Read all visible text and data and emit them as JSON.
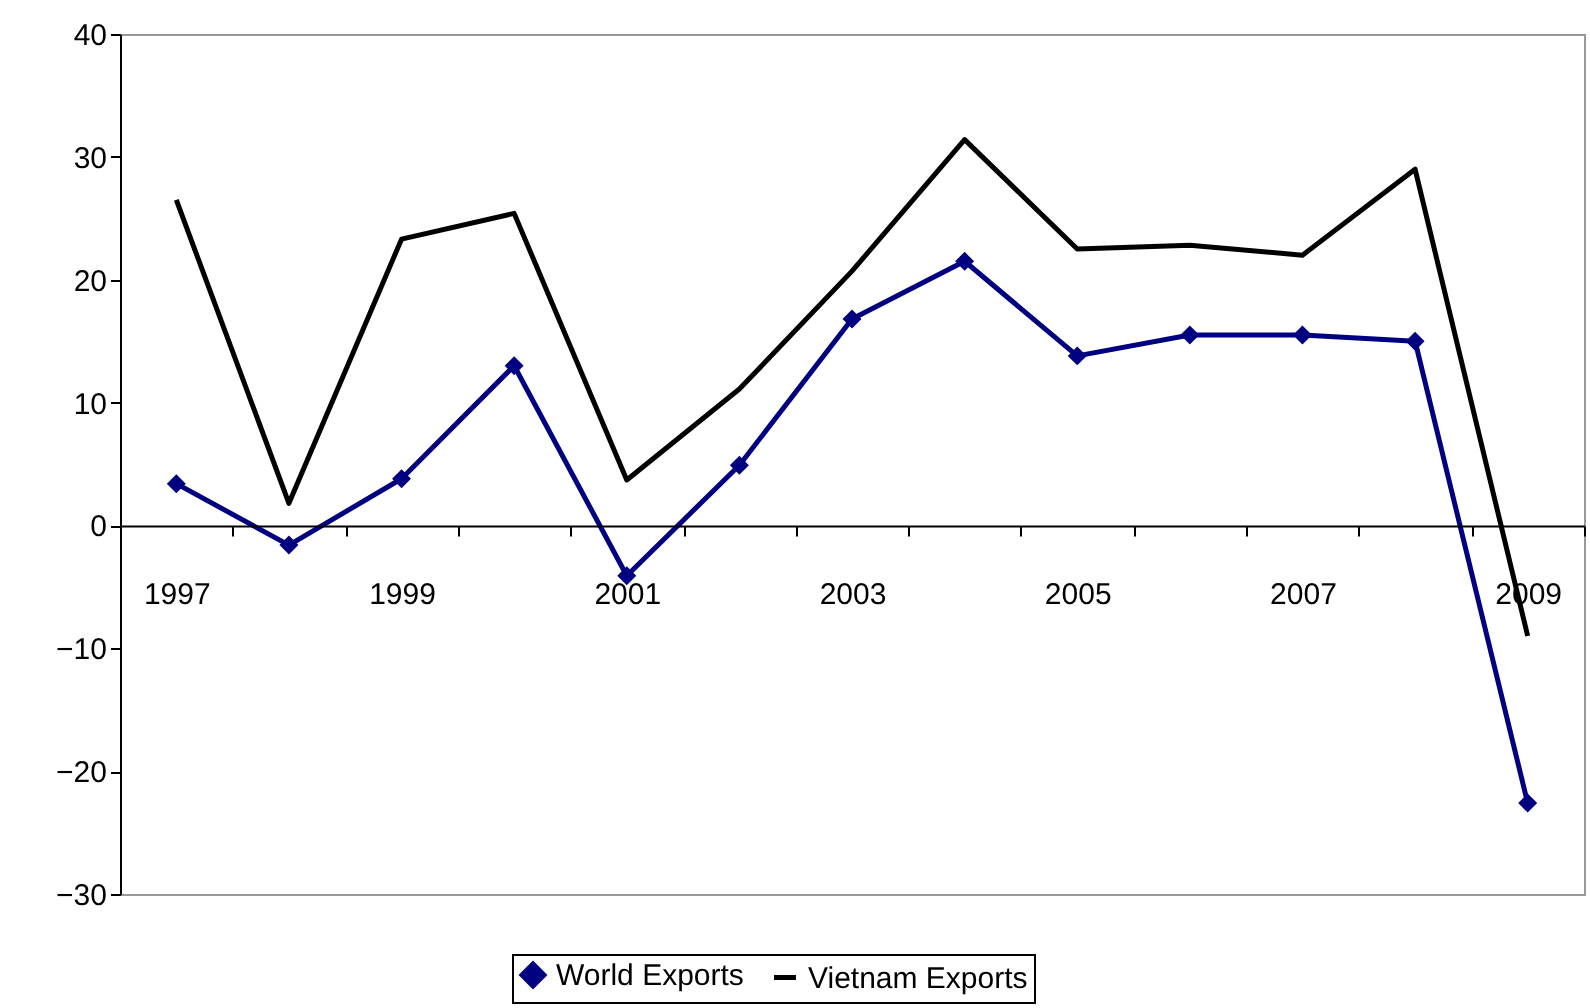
{
  "chart_data": {
    "type": "line",
    "categories": [
      "1997",
      null,
      "1999",
      null,
      "2001",
      null,
      "2003",
      null,
      "2005",
      null,
      "2007",
      null,
      "2009"
    ],
    "series": [
      {
        "name": "World Exports",
        "color": "#000080",
        "marker": "diamond",
        "values": [
          3.4,
          -1.6,
          3.8,
          13.0,
          -4.1,
          4.9,
          16.8,
          21.5,
          13.8,
          15.5,
          15.5,
          15.0,
          -22.6
        ]
      },
      {
        "name": "Vietnam Exports",
        "color": "#000000",
        "marker": "none",
        "values": [
          26.5,
          1.8,
          23.3,
          25.4,
          3.7,
          11.1,
          20.7,
          31.4,
          22.5,
          22.8,
          22.0,
          29.0,
          -9.0
        ]
      }
    ],
    "ylim": [
      -30,
      40
    ],
    "yticks": [
      -30,
      -20,
      -10,
      0,
      10,
      20,
      30,
      40
    ],
    "grid": false,
    "legend": "bottom",
    "line_style": "solid"
  }
}
